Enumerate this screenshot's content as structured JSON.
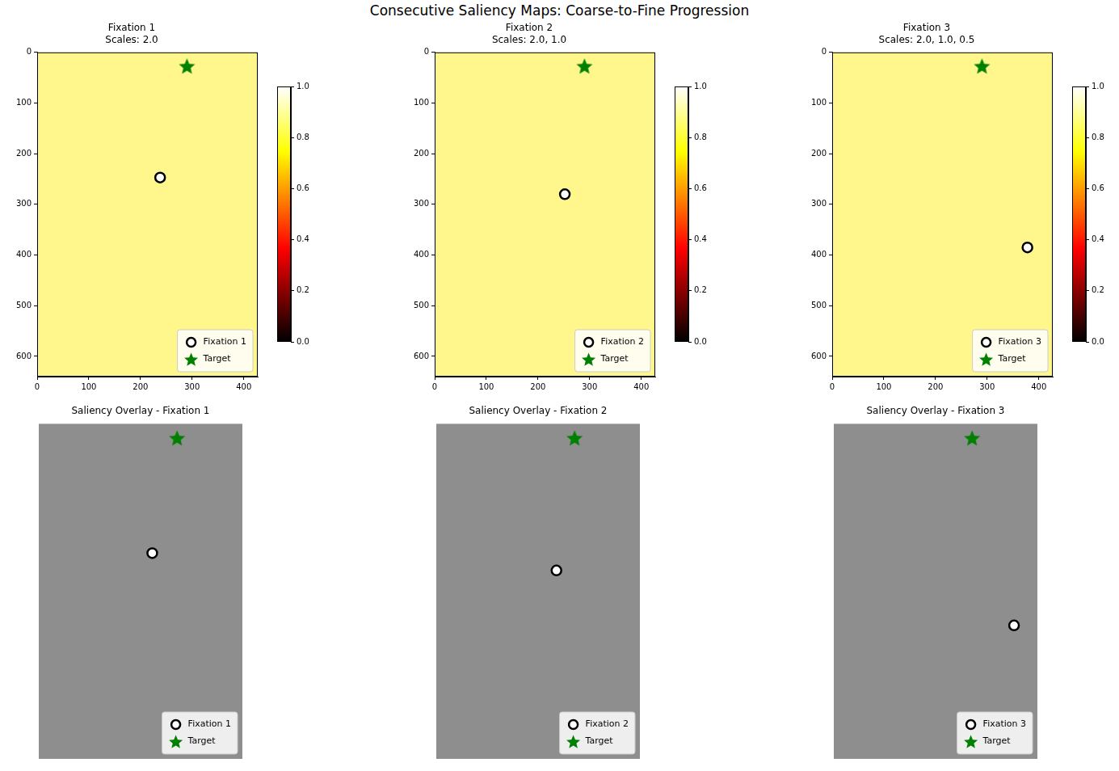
{
  "title": "Consecutive Saliency Maps: Coarse-to-Fine Progression",
  "chart_data": [
    {
      "type": "scatter",
      "title": [
        "Fixation 1",
        "Scales: 2.0"
      ],
      "xlim": [
        0,
        427
      ],
      "ylim": [
        640,
        0
      ],
      "xticks": [
        0,
        100,
        200,
        300,
        400
      ],
      "yticks": [
        0,
        100,
        200,
        300,
        400,
        500,
        600
      ],
      "grid": false,
      "legend": "lower right",
      "series": [
        {
          "name": "Fixation 1",
          "color": "#ffffff",
          "marker": "circle",
          "x": [
            238
          ],
          "values": [
            247
          ]
        },
        {
          "name": "Target",
          "color": "#008000",
          "marker": "star",
          "x": [
            290
          ],
          "values": [
            27
          ]
        }
      ],
      "colorbar": {
        "range": [
          0,
          1
        ],
        "ticks": [
          {
            "value": 0,
            "label": "0.0"
          },
          {
            "value": 0.2,
            "label": "0.2"
          },
          {
            "value": 0.4,
            "label": "0.4"
          },
          {
            "value": 0.6,
            "label": "0.6"
          },
          {
            "value": 0.8,
            "label": "0.8"
          },
          {
            "value": 1,
            "label": "1.0"
          }
        ]
      }
    },
    {
      "type": "scatter",
      "title": [
        "Fixation 2",
        "Scales: 2.0, 1.0"
      ],
      "xlim": [
        0,
        427
      ],
      "ylim": [
        640,
        0
      ],
      "xticks": [
        0,
        100,
        200,
        300,
        400
      ],
      "yticks": [
        0,
        100,
        200,
        300,
        400,
        500,
        600
      ],
      "grid": false,
      "legend": "lower right",
      "series": [
        {
          "name": "Fixation 2",
          "color": "#ffffff",
          "marker": "circle",
          "x": [
            252
          ],
          "values": [
            280
          ]
        },
        {
          "name": "Target",
          "color": "#008000",
          "marker": "star",
          "x": [
            290
          ],
          "values": [
            27
          ]
        }
      ],
      "colorbar": {
        "range": [
          0,
          1
        ],
        "ticks": [
          {
            "value": 0,
            "label": "0.0"
          },
          {
            "value": 0.2,
            "label": "0.2"
          },
          {
            "value": 0.4,
            "label": "0.4"
          },
          {
            "value": 0.6,
            "label": "0.6"
          },
          {
            "value": 0.8,
            "label": "0.8"
          },
          {
            "value": 1,
            "label": "1.0"
          }
        ]
      }
    },
    {
      "type": "scatter",
      "title": [
        "Fixation 3",
        "Scales: 2.0, 1.0, 0.5"
      ],
      "xlim": [
        0,
        427
      ],
      "ylim": [
        640,
        0
      ],
      "xticks": [
        0,
        100,
        200,
        300,
        400
      ],
      "yticks": [
        0,
        100,
        200,
        300,
        400,
        500,
        600
      ],
      "grid": false,
      "legend": "lower right",
      "series": [
        {
          "name": "Fixation 3",
          "color": "#ffffff",
          "marker": "circle",
          "x": [
            378
          ],
          "values": [
            385
          ]
        },
        {
          "name": "Target",
          "color": "#008000",
          "marker": "star",
          "x": [
            290
          ],
          "values": [
            27
          ]
        }
      ],
      "colorbar": {
        "range": [
          0,
          1
        ],
        "ticks": [
          {
            "value": 0,
            "label": "0.0"
          },
          {
            "value": 0.2,
            "label": "0.2"
          },
          {
            "value": 0.4,
            "label": "0.4"
          },
          {
            "value": 0.6,
            "label": "0.6"
          },
          {
            "value": 0.8,
            "label": "0.8"
          },
          {
            "value": 1,
            "label": "1.0"
          }
        ]
      }
    },
    {
      "type": "scatter",
      "title": "Saliency Overlay - Fixation 1",
      "xlim": [
        0,
        427
      ],
      "ylim": [
        640,
        0
      ],
      "tick_labels": false,
      "grid": false,
      "legend": "lower right",
      "series": [
        {
          "name": "Fixation 1",
          "color": "#ffffff",
          "marker": "circle",
          "x": [
            238
          ],
          "values": [
            247
          ]
        },
        {
          "name": "Target",
          "color": "#008000",
          "marker": "star",
          "x": [
            290
          ],
          "values": [
            27
          ]
        }
      ]
    },
    {
      "type": "scatter",
      "title": "Saliency Overlay - Fixation 2",
      "xlim": [
        0,
        427
      ],
      "ylim": [
        640,
        0
      ],
      "tick_labels": false,
      "grid": false,
      "legend": "lower right",
      "series": [
        {
          "name": "Fixation 2",
          "color": "#ffffff",
          "marker": "circle",
          "x": [
            252
          ],
          "values": [
            280
          ]
        },
        {
          "name": "Target",
          "color": "#008000",
          "marker": "star",
          "x": [
            290
          ],
          "values": [
            27
          ]
        }
      ]
    },
    {
      "type": "scatter",
      "title": "Saliency Overlay - Fixation 3",
      "xlim": [
        0,
        427
      ],
      "ylim": [
        640,
        0
      ],
      "tick_labels": false,
      "grid": false,
      "legend": "lower right",
      "series": [
        {
          "name": "Fixation 3",
          "color": "#ffffff",
          "marker": "circle",
          "x": [
            378
          ],
          "values": [
            385
          ]
        },
        {
          "name": "Target",
          "color": "#008000",
          "marker": "star",
          "x": [
            290
          ],
          "values": [
            27
          ]
        }
      ]
    }
  ]
}
